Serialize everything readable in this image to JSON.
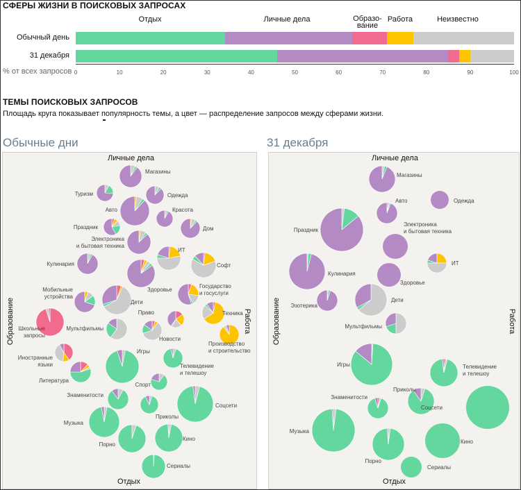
{
  "section1": {
    "title": "СФЕРЫ ЖИЗНИ В ПОИСКОВЫХ ЗАПРОСАХ",
    "categories": [
      {
        "label": "Отдых",
        "color": "#63d79d"
      },
      {
        "label": "Личные дела",
        "color": "#b48ac4"
      },
      {
        "label": "Образо-\nвание",
        "color": "#f16b8e"
      },
      {
        "label": "Работа",
        "color": "#ffc400"
      },
      {
        "label": "Неизвестно",
        "color": "#cccccc"
      }
    ],
    "axis_caption": "% от всех запросов"
  },
  "section2": {
    "title": "ТЕМЫ ПОИСКОВЫХ ЗАПРОСОВ",
    "subtitle": "Площадь круга показывает популярность темы, а цвет — распределение запросов между сферами жизни."
  },
  "colors": {
    "rest": "#63d79d",
    "personal": "#b48ac4",
    "education": "#f16b8e",
    "work": "#ffc400",
    "unknown": "#cccccc",
    "panel_bg": "#f4f2ef",
    "title_gray": "#6a7d8e"
  },
  "chart_data": [
    {
      "type": "bar",
      "stacked": true,
      "orientation": "horizontal",
      "title": "СФЕРЫ ЖИЗНИ В ПОИСКОВЫХ ЗАПРОСАХ",
      "xlabel": "% от всех запросов",
      "xlim": [
        0,
        100
      ],
      "xticks": [
        0,
        10,
        20,
        30,
        40,
        50,
        60,
        70,
        80,
        90,
        100
      ],
      "categories": [
        "Обычный день",
        "31 декабря"
      ],
      "series": [
        {
          "name": "Отдых",
          "values": [
            34,
            46
          ]
        },
        {
          "name": "Личные дела",
          "values": [
            29,
            39
          ]
        },
        {
          "name": "Образо-\nвание",
          "values": [
            8,
            2.5
          ]
        },
        {
          "name": "Работа",
          "values": [
            6,
            2.5
          ]
        },
        {
          "name": "Неизвестно",
          "values": [
            23,
            10
          ]
        }
      ]
    },
    {
      "type": "pie",
      "title": "Обычные дни",
      "axis_labels": {
        "top": "Личные дела",
        "bottom": "Отдых",
        "left": "Образование",
        "right": "Работа"
      },
      "series_names": [
        "Отдых",
        "Личные дела",
        "Образо-\nвание",
        "Работа",
        "Неизвестно"
      ],
      "bubbles": [
        {
          "label": "Магазины",
          "shares": [
            3,
            90,
            0,
            0,
            7
          ]
        },
        {
          "label": "Туризм",
          "shares": [
            18,
            74,
            0,
            0,
            8
          ]
        },
        {
          "label": "Одежда",
          "shares": [
            4,
            88,
            0,
            0,
            8
          ]
        },
        {
          "label": "Авто",
          "shares": [
            3,
            88,
            0,
            2,
            7
          ]
        },
        {
          "label": "Красота",
          "shares": [
            3,
            92,
            0,
            0,
            5
          ]
        },
        {
          "label": "Праздник",
          "shares": [
            20,
            58,
            5,
            7,
            10
          ]
        },
        {
          "label": "Дом",
          "shares": [
            3,
            88,
            0,
            2,
            7
          ]
        },
        {
          "label": "Электроника\nи бытовая техника",
          "shares": [
            3,
            87,
            0,
            2,
            8
          ]
        },
        {
          "label": "ИТ",
          "shares": [
            5,
            20,
            2,
            20,
            53
          ]
        },
        {
          "label": "Кулинария",
          "shares": [
            3,
            92,
            0,
            0,
            5
          ]
        },
        {
          "label": "Софт",
          "shares": [
            5,
            12,
            2,
            18,
            63
          ]
        },
        {
          "label": "Здоровье",
          "shares": [
            3,
            85,
            4,
            3,
            5
          ]
        },
        {
          "label": "Государство\nи госуслуги",
          "shares": [
            3,
            55,
            5,
            22,
            15
          ]
        },
        {
          "label": "Мобильные\nустройства",
          "shares": [
            15,
            70,
            0,
            5,
            10
          ]
        },
        {
          "label": "Дети",
          "shares": [
            3,
            30,
            5,
            2,
            60
          ]
        },
        {
          "label": "Право",
          "shares": [
            2,
            40,
            15,
            23,
            20
          ]
        },
        {
          "label": "Техника",
          "shares": [
            3,
            10,
            3,
            63,
            21
          ]
        },
        {
          "label": "Мультфильмы",
          "shares": [
            25,
            15,
            0,
            0,
            60
          ]
        },
        {
          "label": "Новости",
          "shares": [
            15,
            15,
            5,
            5,
            60
          ]
        },
        {
          "label": "Школьные\nзапросы",
          "shares": [
            0,
            2,
            95,
            0,
            3
          ]
        },
        {
          "label": "Производство\nи строительство",
          "shares": [
            0,
            5,
            0,
            90,
            5
          ]
        },
        {
          "label": "Иностранные\nязыки",
          "shares": [
            0,
            8,
            40,
            12,
            40
          ]
        },
        {
          "label": "Игры",
          "shares": [
            92,
            5,
            0,
            0,
            3
          ]
        },
        {
          "label": "Телевидение\nи телешоу",
          "shares": [
            92,
            3,
            0,
            0,
            5
          ]
        },
        {
          "label": "Литература",
          "shares": [
            55,
            25,
            12,
            5,
            3
          ]
        },
        {
          "label": "Спорт",
          "shares": [
            70,
            20,
            0,
            0,
            10
          ]
        },
        {
          "label": "Знаменитости",
          "shares": [
            82,
            10,
            0,
            0,
            8
          ]
        },
        {
          "label": "Соцсети",
          "shares": [
            94,
            2,
            0,
            0,
            4
          ]
        },
        {
          "label": "Приколы",
          "shares": [
            88,
            7,
            0,
            0,
            5
          ]
        },
        {
          "label": "Музыка",
          "shares": [
            94,
            3,
            0,
            0,
            3
          ]
        },
        {
          "label": "Порно",
          "shares": [
            95,
            0,
            0,
            0,
            5
          ]
        },
        {
          "label": "Кино",
          "shares": [
            96,
            1,
            0,
            0,
            3
          ]
        },
        {
          "label": "Сериалы",
          "shares": [
            99,
            0,
            0,
            0,
            1
          ]
        }
      ]
    },
    {
      "type": "pie",
      "title": "31 декабря",
      "axis_labels": {
        "top": "Личные дела",
        "bottom": "Отдых",
        "left": "Образование",
        "right": "Работа"
      },
      "series_names": [
        "Отдых",
        "Личные дела",
        "Образо-\nвание",
        "Работа",
        "Неизвестно"
      ],
      "bubbles": [
        {
          "label": "Магазины",
          "shares": [
            3,
            94,
            0,
            0,
            3
          ]
        },
        {
          "label": "Авто",
          "shares": [
            2,
            94,
            2,
            0,
            2
          ]
        },
        {
          "label": "Одежда",
          "shares": [
            0,
            100,
            0,
            0,
            0
          ]
        },
        {
          "label": "Праздник",
          "shares": [
            12,
            86,
            0,
            0,
            2
          ]
        },
        {
          "label": "Электроника\nи бытовая техника",
          "shares": [
            0,
            100,
            0,
            0,
            0
          ]
        },
        {
          "label": "ИТ",
          "shares": [
            5,
            20,
            0,
            25,
            50
          ]
        },
        {
          "label": "Кулинария",
          "shares": [
            3,
            96,
            0,
            0,
            1
          ]
        },
        {
          "label": "Здоровье",
          "shares": [
            0,
            100,
            0,
            0,
            0
          ]
        },
        {
          "label": "Эзотерика",
          "shares": [
            3,
            95,
            0,
            0,
            2
          ]
        },
        {
          "label": "Дети",
          "shares": [
            3,
            33,
            0,
            0,
            64
          ]
        },
        {
          "label": "Мультфильмы",
          "shares": [
            20,
            30,
            0,
            0,
            50
          ]
        },
        {
          "label": "Игры",
          "shares": [
            85,
            14,
            0,
            0,
            1
          ]
        },
        {
          "label": "Телевидение\nи телешоу",
          "shares": [
            94,
            2,
            2,
            0,
            2
          ]
        },
        {
          "label": "Приколы",
          "shares": [
            85,
            10,
            0,
            0,
            5
          ]
        },
        {
          "label": "Знаменитости",
          "shares": [
            90,
            5,
            3,
            0,
            2
          ]
        },
        {
          "label": "Соцсети",
          "shares": [
            100,
            0,
            0,
            0,
            0
          ]
        },
        {
          "label": "Музыка",
          "shares": [
            97,
            1,
            0,
            0,
            2
          ]
        },
        {
          "label": "Порно",
          "shares": [
            97,
            1,
            0,
            0,
            2
          ]
        },
        {
          "label": "Кино",
          "shares": [
            100,
            0,
            0,
            0,
            0
          ]
        },
        {
          "label": "Сериалы",
          "shares": [
            100,
            0,
            0,
            0,
            0
          ]
        }
      ]
    }
  ]
}
